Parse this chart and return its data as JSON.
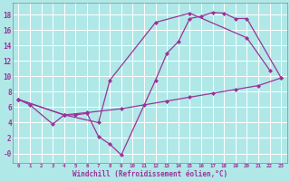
{
  "xlabel": "Windchill (Refroidissement éolien,°C)",
  "background_color": "#b0e8e8",
  "grid_color": "#ffffff",
  "line_color": "#993399",
  "xlim": [
    -0.5,
    23.5
  ],
  "ylim": [
    -1.2,
    19.5
  ],
  "xticks": [
    0,
    1,
    2,
    3,
    4,
    5,
    6,
    7,
    8,
    9,
    10,
    11,
    12,
    13,
    14,
    15,
    16,
    17,
    18,
    19,
    20,
    21,
    22,
    23
  ],
  "yticks": [
    0,
    2,
    4,
    6,
    8,
    10,
    12,
    14,
    16,
    18
  ],
  "ytick_labels": [
    "-0",
    "2",
    "4",
    "6",
    "8",
    "10",
    "12",
    "14",
    "16",
    "18"
  ],
  "s1_x": [
    0,
    1,
    3,
    4,
    5,
    6,
    7,
    8,
    9,
    12,
    13,
    14,
    15,
    16,
    17,
    18,
    19,
    20,
    23
  ],
  "s1_y": [
    7.0,
    6.3,
    3.8,
    5.0,
    5.0,
    5.2,
    2.2,
    1.2,
    -0.2,
    9.5,
    13.0,
    14.5,
    17.5,
    17.8,
    18.3,
    18.2,
    17.5,
    17.5,
    9.8
  ],
  "s2_x": [
    0,
    4,
    7,
    8,
    12,
    15,
    20,
    22
  ],
  "s2_y": [
    7.0,
    5.0,
    4.0,
    9.5,
    17.0,
    18.2,
    15.0,
    10.8
  ],
  "s3_x": [
    0,
    4,
    6,
    9,
    11,
    13,
    15,
    17,
    19,
    21,
    23
  ],
  "s3_y": [
    7.0,
    5.0,
    5.3,
    5.8,
    6.3,
    6.8,
    7.3,
    7.8,
    8.3,
    8.8,
    9.8
  ]
}
